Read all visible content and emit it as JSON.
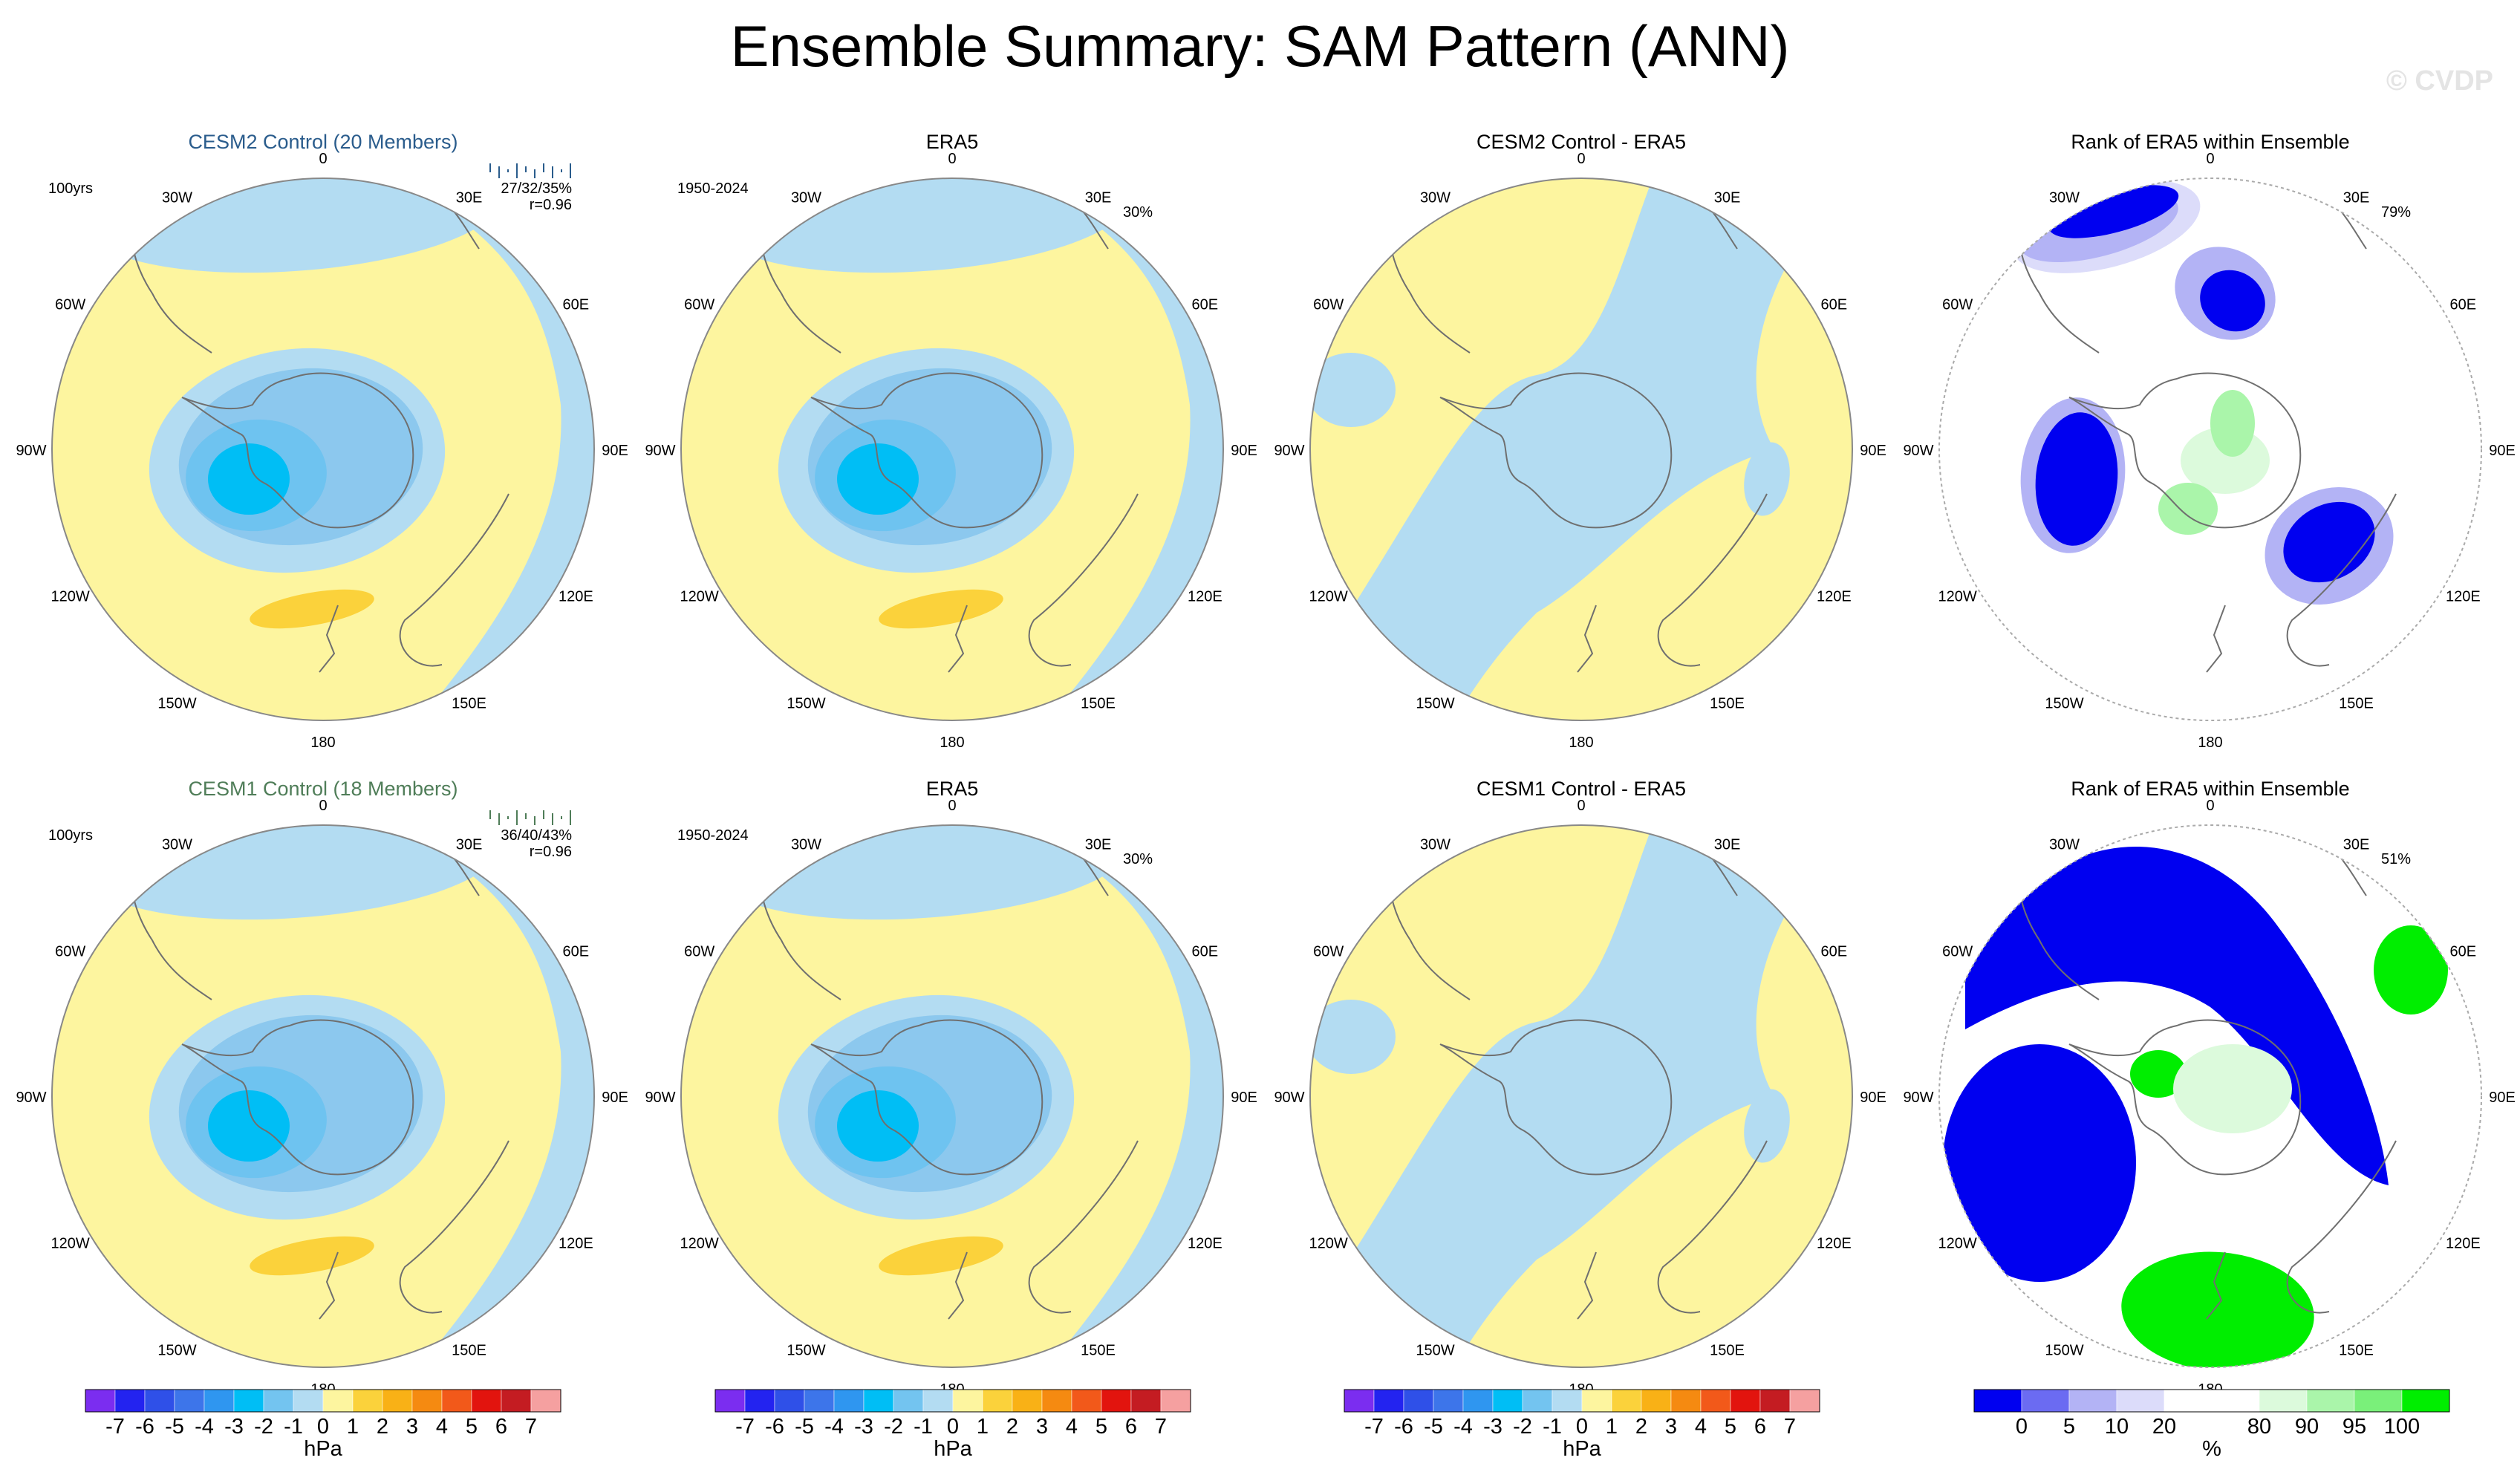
{
  "title": "Ensemble Summary: SAM Pattern (ANN)",
  "watermark": "© CVDP",
  "lon_labels": {
    "top": "0",
    "bottom": "180",
    "upper_left": "30W",
    "upper_right": "30E",
    "mid_upper_left": "60W",
    "mid_upper_right": "60E",
    "left": "90W",
    "right": "90E",
    "mid_lower_left": "120W",
    "mid_lower_right": "120E",
    "lower_left": "150W",
    "lower_right": "150E"
  },
  "colors": {
    "ocean_neg1": "#b3dcf2",
    "neg2": "#8cc8ee",
    "neg3": "#6ec3f0",
    "neg4": "#00bef5",
    "pos1": "#fdf59f",
    "pos2": "#fbd23b",
    "rank_lo1": "#0000f0",
    "rank_lo2": "#6b6bf2",
    "rank_lo3": "#b3b3f5",
    "rank_lo4": "#dcdcfa",
    "rank_hi1": "#dcfadc",
    "rank_hi2": "#aaf5aa",
    "rank_hi3": "#00ee00"
  },
  "chart_data": [
    {
      "type": "map",
      "panel": "r1c1",
      "title": "CESM2 Control (20 Members)",
      "title_color": "#2a5c8c",
      "left_label": "100yrs",
      "right_label_1": "27/32/35%",
      "right_label_2": "r=0.96",
      "features": [
        {
          "name": "negative-center",
          "level": -4
        },
        {
          "name": "positive-band",
          "level": 1.5
        }
      ]
    },
    {
      "type": "map",
      "panel": "r1c2",
      "title": "ERA5",
      "left_label": "1950-2024",
      "right_label": "30%",
      "features": [
        {
          "name": "negative-center",
          "level": -4
        },
        {
          "name": "positive-blob",
          "level": 1.5
        }
      ]
    },
    {
      "type": "map",
      "panel": "r1c3",
      "title": "CESM2 Control - ERA5",
      "features": [
        {
          "name": "weak-negative",
          "level": -1
        },
        {
          "name": "weak-positive",
          "level": 1
        }
      ]
    },
    {
      "type": "map",
      "panel": "r1c4",
      "title": "Rank of ERA5 within Ensemble",
      "right_label": "79%"
    },
    {
      "type": "map",
      "panel": "r2c1",
      "title": "CESM1 Control (18 Members)",
      "title_color": "#4f7d58",
      "left_label": "100yrs",
      "right_label_1": "36/40/43%",
      "right_label_2": "r=0.96",
      "features": [
        {
          "name": "negative-center",
          "level": -4
        },
        {
          "name": "positive-blob",
          "level": 1.5
        }
      ]
    },
    {
      "type": "map",
      "panel": "r2c2",
      "title": "ERA5",
      "left_label": "1950-2024",
      "right_label": "30%",
      "features": [
        {
          "name": "negative-center",
          "level": -4
        },
        {
          "name": "positive-blob",
          "level": 1.5
        }
      ]
    },
    {
      "type": "map",
      "panel": "r2c3",
      "title": "CESM1 Control - ERA5",
      "features": [
        {
          "name": "weak-negative",
          "level": -1
        },
        {
          "name": "weak-positive",
          "level": 1
        }
      ]
    },
    {
      "type": "map",
      "panel": "r2c4",
      "title": "Rank of ERA5 within Ensemble",
      "right_label": "51%"
    }
  ],
  "colorbars": [
    {
      "units": "hPa",
      "labels": [
        "-7",
        "-6",
        "-5",
        "-4",
        "-3",
        "-2",
        "-1",
        "0",
        "1",
        "2",
        "3",
        "4",
        "5",
        "6",
        "7"
      ],
      "colors": [
        "#7b2df0",
        "#2323f0",
        "#2f50e8",
        "#3d75ea",
        "#2f96f0",
        "#00bef5",
        "#73c4f0",
        "#b3dcf2",
        "#fdf59f",
        "#fbd23b",
        "#f9b116",
        "#f58a11",
        "#f2591a",
        "#e2140e",
        "#c41c22",
        "#f5a0a0"
      ]
    },
    {
      "units": "%",
      "labels": [
        "0",
        "5",
        "10",
        "20",
        "80",
        "90",
        "95",
        "100"
      ],
      "colors": [
        "#0000f0",
        "#6b6bf2",
        "#b3b3f5",
        "#dcdcfa",
        "#ffffff",
        "#ffffff",
        "#dcfadc",
        "#aaf5aa",
        "#7af07a",
        "#00ee00"
      ]
    }
  ]
}
